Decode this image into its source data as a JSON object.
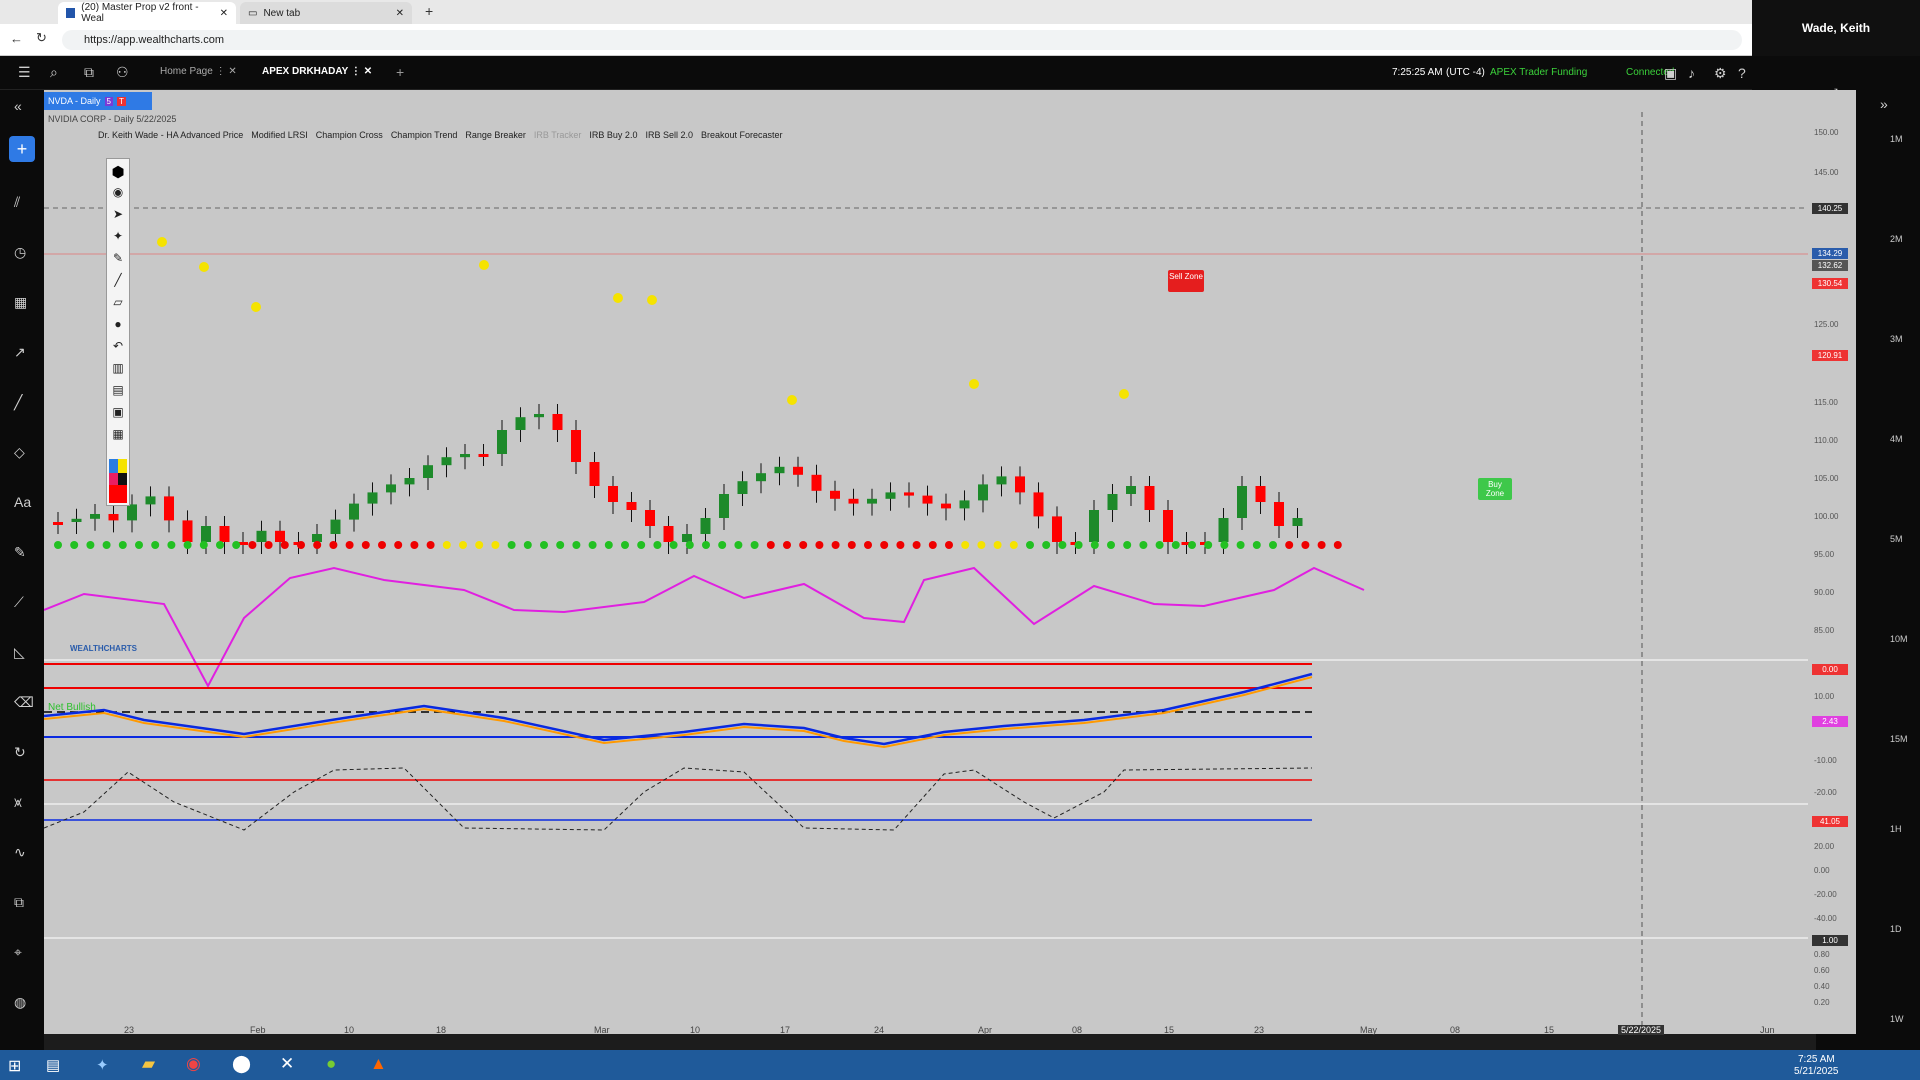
{
  "browser": {
    "tabs": [
      {
        "label": "(20) Master Prop v2 front - Weal"
      },
      {
        "label": "New tab"
      }
    ],
    "url": "https://app.wealthcharts.com",
    "profile": "Wade, Keith"
  },
  "app": {
    "tabs": [
      {
        "label": "Home Page"
      },
      {
        "label": "APEX DRKHADAY"
      }
    ],
    "time": "7:25:25 AM",
    "tz": "(UTC -4)",
    "account": "APEX Trader Funding",
    "status": "Connected"
  },
  "chart": {
    "symbol_tab": "NVDA - Daily",
    "symbol_badges": [
      "5",
      "T"
    ],
    "symbol_title": "NVIDIA CORP - Daily",
    "date": "5/22/2025",
    "indicators": [
      "Dr. Keith Wade - HA Advanced Price",
      "Modified LRSI",
      "Champion Cross",
      "Champion Trend",
      "Range Breaker",
      "IRB Tracker",
      "IRB Buy 2.0",
      "IRB Sell 2.0",
      "Breakout Forecaster"
    ],
    "sell_zone": "Sell Zone",
    "buy_zone": "Buy Zone",
    "watermark": "WEALTHCHARTS",
    "net_label": "Net Bullish",
    "price_levels": [
      "150.00",
      "145.00",
      "125.00",
      "115.00",
      "110.00",
      "105.00",
      "100.00",
      "95.00",
      "90.00",
      "85.00"
    ],
    "price_tags": [
      {
        "v": "140.25",
        "c": "#333"
      },
      {
        "v": "134.29",
        "c": "#2a5cab"
      },
      {
        "v": "132.62",
        "c": "#555"
      },
      {
        "v": "130.54",
        "c": "#e33"
      },
      {
        "v": "120.91",
        "c": "#e33"
      }
    ],
    "osc1_levels": [
      "10.00",
      "-10.00",
      "-20.00"
    ],
    "osc1_tag": "2.43",
    "osc2_levels": [
      "20.00",
      "0.00",
      "-20.00",
      "-40.00"
    ],
    "osc2_tag": "41.05",
    "osc3_levels": [
      "0.80",
      "0.60",
      "0.40",
      "0.20"
    ],
    "osc3_tag": "1.00",
    "dot_tag": "0.00",
    "date_labels": [
      "23",
      "Feb",
      "10",
      "18",
      "Mar",
      "10",
      "17",
      "24",
      "Apr",
      "08",
      "15",
      "23",
      "May",
      "08",
      "15",
      "5/22/2025",
      "Jun"
    ],
    "timeframes": [
      "1M",
      "2M",
      "3M",
      "4M",
      "5M",
      "10M",
      "15M",
      "1H",
      "1D",
      "1W"
    ]
  },
  "taskbar": {
    "time": "7:25 AM",
    "date": "5/21/2025"
  }
}
